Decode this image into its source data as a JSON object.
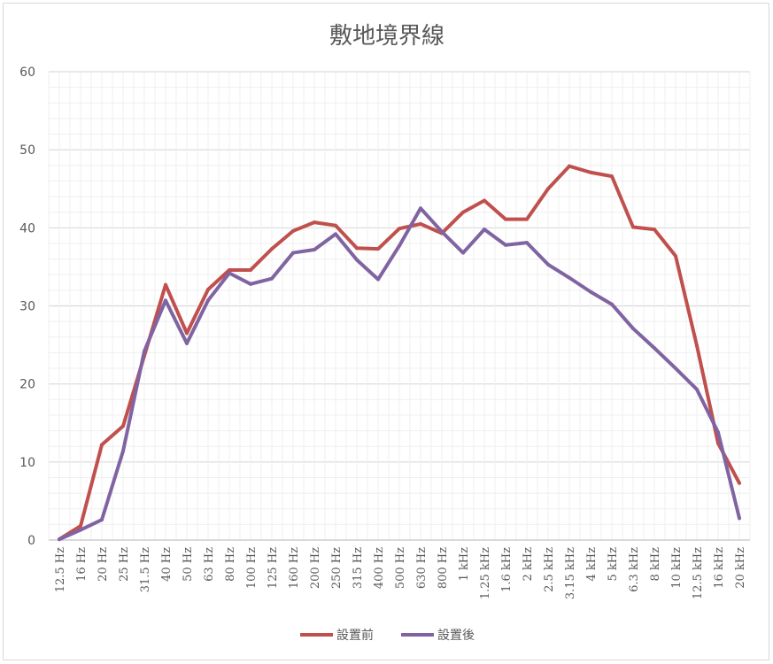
{
  "chart_data": {
    "type": "line",
    "title": "敷地境界線",
    "xlabel": "",
    "ylabel": "",
    "ylim": [
      0,
      60
    ],
    "yticks": [
      0,
      10,
      20,
      30,
      40,
      50,
      60
    ],
    "grid": true,
    "legend_position": "bottom",
    "categories": [
      "12.5 Hz",
      "16 Hz",
      "20 Hz",
      "25 Hz",
      "31.5 Hz",
      "40 Hz",
      "50 Hz",
      "63 Hz",
      "80 Hz",
      "100 Hz",
      "125 Hz",
      "160 Hz",
      "200 Hz",
      "250 Hz",
      "315 Hz",
      "400 Hz",
      "500 Hz",
      "630 Hz",
      "800 Hz",
      "1 kHz",
      "1.25 kHz",
      "1.6 kHz",
      "2 kHz",
      "2.5 kHz",
      "3.15 kHz",
      "4 kHz",
      "5 kHz",
      "6.3 kHz",
      "8 kHz",
      "10 kHz",
      "12.5 kHz",
      "16 kHz",
      "20 kHz"
    ],
    "series": [
      {
        "name": "設置前",
        "color": "#c0504d",
        "values": [
          0.1,
          1.8,
          12.2,
          14.6,
          23.6,
          32.7,
          26.5,
          32.1,
          34.6,
          34.6,
          37.3,
          39.6,
          40.7,
          40.3,
          37.4,
          37.3,
          39.9,
          40.5,
          39.3,
          42.0,
          43.5,
          41.1,
          41.1,
          45.0,
          47.9,
          47.1,
          46.6,
          40.1,
          39.8,
          36.4,
          24.9,
          12.4,
          7.3
        ]
      },
      {
        "name": "設置後",
        "color": "#8064a2",
        "values": [
          0.1,
          1.3,
          2.6,
          11.4,
          24.2,
          30.7,
          25.2,
          30.7,
          34.2,
          32.8,
          33.5,
          36.8,
          37.2,
          39.2,
          35.9,
          33.4,
          37.7,
          42.5,
          39.5,
          36.8,
          39.8,
          37.8,
          38.1,
          35.3,
          33.6,
          31.8,
          30.2,
          27.1,
          24.6,
          22.0,
          19.3,
          13.8,
          2.8
        ]
      }
    ]
  }
}
